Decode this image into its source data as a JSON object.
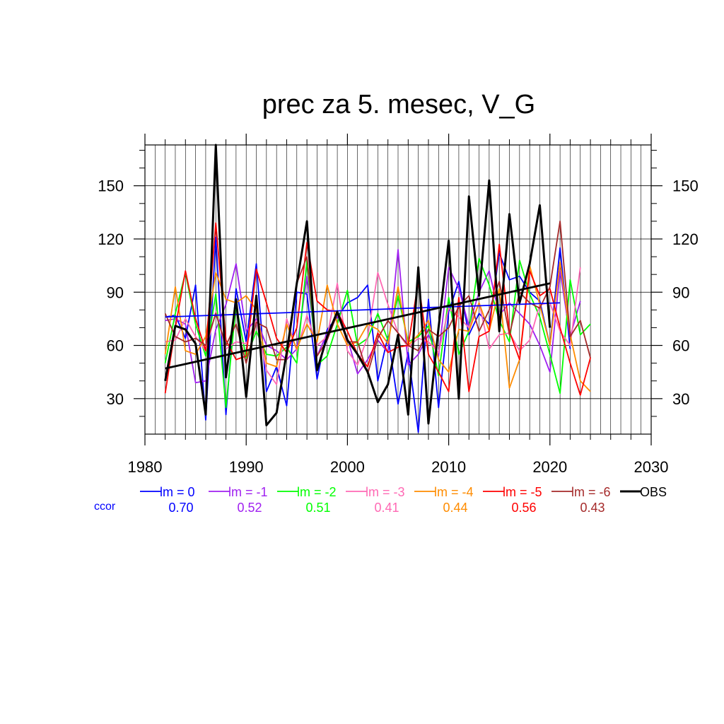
{
  "chart_data": {
    "type": "line",
    "title": "prec za 5. mesec, V_G",
    "xlabel": "",
    "ylabel": "",
    "xlim": [
      1980,
      2030
    ],
    "ylim": [
      10,
      173
    ],
    "x_ticks": [
      1980,
      1990,
      2000,
      2010,
      2020,
      2030
    ],
    "y_ticks": [
      30,
      60,
      90,
      120,
      150
    ],
    "grid": true,
    "legend_position": "bottom",
    "ccor_label": "ccor",
    "series": [
      {
        "name": "lm = 0",
        "color": "#0000ff",
        "ccor": "0.70",
        "bold": false,
        "start": 1982,
        "values": [
          76,
          77,
          64,
          94,
          18,
          121,
          21,
          92,
          62,
          106,
          34,
          48,
          26,
          90,
          89,
          41,
          69,
          76,
          84,
          87,
          94,
          40,
          65,
          27,
          56,
          11,
          86,
          25,
          79,
          96,
          66,
          78,
          72,
          112,
          97,
          99,
          90,
          85,
          60,
          115,
          58
        ]
      },
      {
        "name": "lm = -1",
        "color": "#a020f0",
        "ccor": "0.52",
        "bold": false,
        "start": 1982,
        "values": [
          74,
          75,
          72,
          39,
          40,
          69,
          83,
          106,
          68,
          75,
          60,
          57,
          52,
          58,
          99,
          54,
          67,
          77,
          64,
          44,
          52,
          63,
          56,
          114,
          49,
          55,
          66,
          54,
          104,
          92,
          71,
          90,
          102,
          77,
          84,
          78,
          72,
          60,
          45,
          102,
          65,
          85
        ]
      },
      {
        "name": "lm = -2",
        "color": "#00ff00",
        "ccor": "0.51",
        "bold": false,
        "start": 1982,
        "values": [
          50,
          78,
          101,
          72,
          54,
          89,
          25,
          83,
          53,
          68,
          55,
          54,
          59,
          50,
          108,
          49,
          54,
          72,
          91,
          60,
          64,
          78,
          63,
          88,
          62,
          65,
          71,
          43,
          87,
          55,
          68,
          109,
          94,
          74,
          62,
          108,
          89,
          76,
          55,
          33,
          97,
          66,
          72
        ]
      },
      {
        "name": "lm = -3",
        "color": "#ff69b4",
        "ccor": "0.41",
        "bold": false,
        "start": 1982,
        "values": [
          62,
          63,
          75,
          65,
          57,
          79,
          58,
          62,
          61,
          74,
          46,
          38,
          75,
          57,
          77,
          60,
          65,
          95,
          57,
          49,
          65,
          101,
          83,
          67,
          59,
          64,
          62,
          56,
          81,
          76,
          70,
          84,
          58,
          66,
          67,
          57,
          63,
          83,
          84,
          68,
          60,
          104
        ]
      },
      {
        "name": "lm = -4",
        "color": "#ff8c00",
        "ccor": "0.44",
        "bold": false,
        "start": 1982,
        "values": [
          55,
          93,
          57,
          55,
          65,
          101,
          86,
          84,
          88,
          80,
          50,
          48,
          72,
          58,
          72,
          62,
          94,
          72,
          60,
          62,
          72,
          69,
          61,
          93,
          60,
          66,
          74,
          52,
          45,
          69,
          68,
          84,
          68,
          92,
          36,
          52,
          105,
          83,
          60,
          107,
          66,
          40,
          34
        ]
      },
      {
        "name": "lm = -5",
        "color": "#ff0000",
        "ccor": "0.56",
        "bold": false,
        "start": 1982,
        "values": [
          33,
          70,
          102,
          75,
          57,
          129,
          63,
          52,
          54,
          103,
          84,
          64,
          56,
          70,
          118,
          85,
          80,
          79,
          68,
          55,
          48,
          67,
          56,
          59,
          60,
          96,
          55,
          45,
          34,
          87,
          34,
          65,
          68,
          117,
          68,
          52,
          102,
          88,
          92,
          70,
          50,
          32,
          53
        ]
      },
      {
        "name": "lm = -6",
        "color": "#a52a2a",
        "ccor": "0.43",
        "bold": false,
        "start": 1982,
        "values": [
          78,
          65,
          62,
          64,
          60,
          78,
          60,
          72,
          50,
          73,
          70,
          52,
          52,
          95,
          110,
          54,
          63,
          78,
          62,
          62,
          44,
          64,
          74,
          67,
          60,
          57,
          69,
          65,
          70,
          82,
          88,
          68,
          80,
          96,
          66,
          90,
          84,
          81,
          93,
          130,
          65,
          74,
          53
        ]
      },
      {
        "name": "OBS",
        "color": "#000000",
        "ccor": "",
        "bold": true,
        "start": 1982,
        "values": [
          40,
          71,
          69,
          61,
          21,
          173,
          42,
          86,
          31,
          88,
          15,
          22,
          56,
          95,
          130,
          46,
          65,
          79,
          63,
          55,
          45,
          28,
          38,
          66,
          21,
          104,
          16,
          70,
          119,
          30,
          144,
          88,
          153,
          68,
          134,
          84,
          106,
          139,
          70
        ]
      }
    ],
    "trend_lines": [
      {
        "name": "lm = 0 trend",
        "color": "#0000ff",
        "x": [
          1982,
          2021
        ],
        "y": [
          76,
          84
        ]
      },
      {
        "name": "OBS trend",
        "color": "#000000",
        "x": [
          1982,
          2020
        ],
        "y": [
          47,
          95
        ]
      }
    ]
  }
}
